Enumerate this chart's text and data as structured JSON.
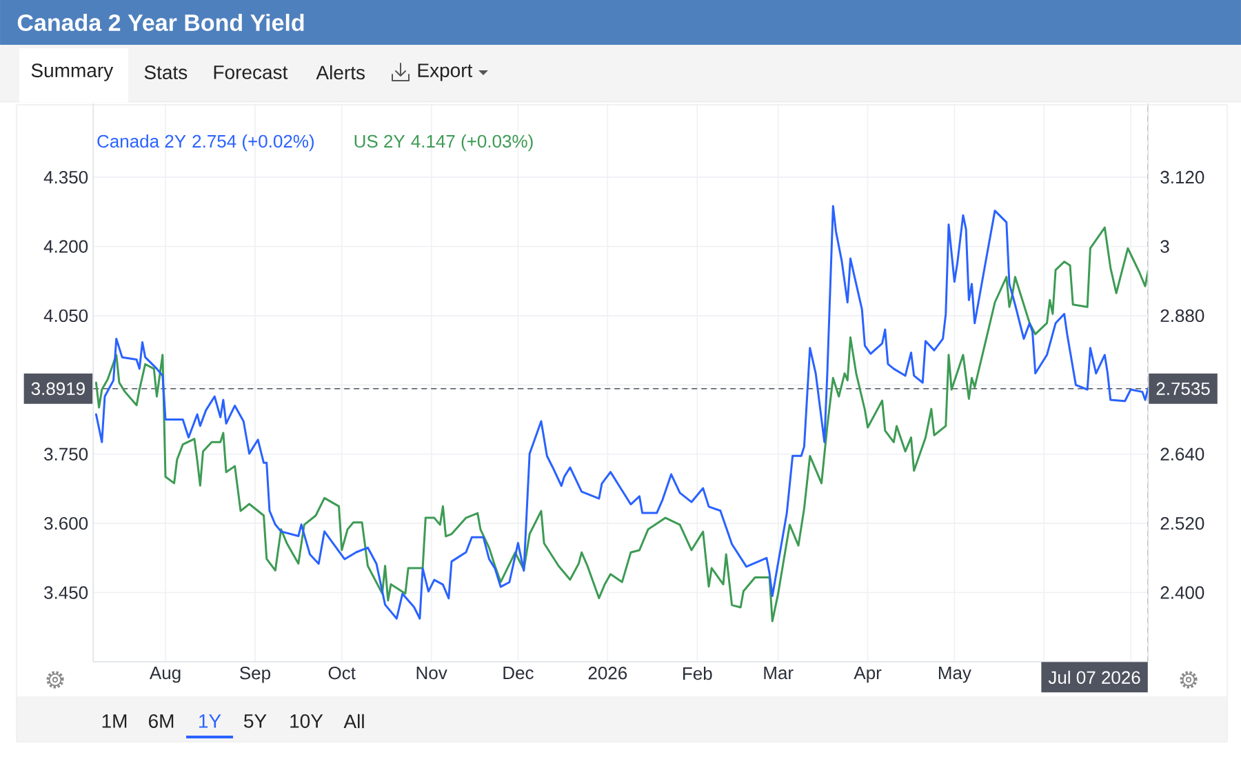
{
  "chart_data": {
    "type": "line",
    "title": "Canada 2 Year Bond Yield",
    "xlim": [
      "2025-07-07",
      "2026-07-07"
    ],
    "xticks": [
      {
        "value": "2025-08-01",
        "label": "Aug"
      },
      {
        "value": "2025-09-01",
        "label": "Sep"
      },
      {
        "value": "2025-10-01",
        "label": "Oct"
      },
      {
        "value": "2025-11-01",
        "label": "Nov"
      },
      {
        "value": "2025-12-01",
        "label": "Dec"
      },
      {
        "value": "2026-01-01",
        "label": "2026"
      },
      {
        "value": "2026-02-01",
        "label": "Feb"
      },
      {
        "value": "2026-03-01",
        "label": "Mar"
      },
      {
        "value": "2026-04-01",
        "label": "Apr"
      },
      {
        "value": "2026-05-01",
        "label": "May"
      },
      {
        "value": "2026-06-01",
        "label": null
      },
      {
        "value": "2026-07-01",
        "label": null
      }
    ],
    "ylim": [
      3.3,
      4.51
    ],
    "yticks": [
      {
        "value": 4.35,
        "label": "4.350"
      },
      {
        "value": 4.2,
        "label": "4.200"
      },
      {
        "value": 4.05,
        "label": "4.050"
      },
      {
        "value": 3.9,
        "label": null
      },
      {
        "value": 3.8919,
        "label": "3.8919"
      },
      {
        "value": 3.75,
        "label": "3.750"
      },
      {
        "value": 3.6,
        "label": "3.600"
      },
      {
        "value": 3.45,
        "label": "3.450"
      }
    ],
    "y2lim": [
      2.28,
      3.248
    ],
    "y2ticks": [
      {
        "value": 3.12,
        "label": "3.120"
      },
      3,
      {
        "value": 2.88,
        "label": "2.880"
      },
      {
        "value": 2.76,
        "label": null
      },
      {
        "value": 2.7535,
        "label": "2.7535"
      },
      {
        "value": 2.64,
        "label": "2.640"
      },
      {
        "value": 2.52,
        "label": "2.520"
      },
      {
        "value": 2.4,
        "label": "2.400"
      }
    ],
    "series": [
      {
        "name": "Canada 2Y",
        "color": "#2962ff",
        "axis": "y2",
        "x": [
          "2025-07-08",
          "2025-07-10",
          "2025-07-11",
          "2025-07-14",
          "2025-07-15",
          "2025-07-17",
          "2025-07-22",
          "2025-07-23",
          "2025-07-24",
          "2025-07-25",
          "2025-07-29",
          "2025-07-31",
          "2025-08-01",
          "2025-08-07",
          "2025-08-09",
          "2025-08-12",
          "2025-08-13",
          "2025-08-15",
          "2025-08-18",
          "2025-08-20",
          "2025-08-21",
          "2025-08-22",
          "2025-08-25",
          "2025-08-28",
          "2025-08-30",
          "2025-09-02",
          "2025-09-04",
          "2025-09-05",
          "2025-09-06",
          "2025-09-08",
          "2025-09-10",
          "2025-09-16",
          "2025-09-17",
          "2025-09-20",
          "2025-09-23",
          "2025-09-25",
          "2025-10-02",
          "2025-10-06",
          "2025-10-10",
          "2025-10-13",
          "2025-10-16",
          "2025-10-20",
          "2025-10-22",
          "2025-10-26",
          "2025-10-28",
          "2025-10-29",
          "2025-10-31",
          "2025-11-02",
          "2025-11-05",
          "2025-11-07",
          "2025-11-08",
          "2025-11-13",
          "2025-11-15",
          "2025-11-19",
          "2025-11-21",
          "2025-11-23",
          "2025-11-25",
          "2025-11-28",
          "2025-12-01",
          "2025-12-03",
          "2025-12-05",
          "2025-12-09",
          "2025-12-11",
          "2025-12-13",
          "2025-12-16",
          "2025-12-17",
          "2025-12-19",
          "2025-12-23",
          "2025-12-29",
          "2025-12-30",
          "2026-01-02",
          "2026-01-05",
          "2026-01-09",
          "2026-01-12",
          "2026-01-13",
          "2026-01-18",
          "2026-01-20",
          "2026-01-23",
          "2026-01-26",
          "2026-01-30",
          "2026-02-03",
          "2026-02-05",
          "2026-02-09",
          "2026-02-13",
          "2026-02-18",
          "2026-02-25",
          "2026-02-26",
          "2026-02-27",
          "2026-03-04",
          "2026-03-06",
          "2026-03-09",
          "2026-03-10",
          "2026-03-12",
          "2026-03-14",
          "2026-03-17",
          "2026-03-18",
          "2026-03-20",
          "2026-03-21",
          "2026-03-23",
          "2026-03-25",
          "2026-03-26",
          "2026-03-28",
          "2026-03-30",
          "2026-03-31",
          "2026-04-02",
          "2026-04-06",
          "2026-04-07",
          "2026-04-08",
          "2026-04-10",
          "2026-04-14",
          "2026-04-16",
          "2026-04-17",
          "2026-04-20",
          "2026-04-21",
          "2026-04-24",
          "2026-04-27",
          "2026-04-28",
          "2026-04-29",
          "2026-05-01",
          "2026-05-02",
          "2026-05-04",
          "2026-05-05",
          "2026-05-06",
          "2026-05-07",
          "2026-05-08",
          "2026-05-12",
          "2026-05-15",
          "2026-05-19",
          "2026-05-20",
          "2026-05-22",
          "2026-05-25",
          "2026-05-27",
          "2026-05-28",
          "2026-05-29",
          "2026-06-02",
          "2026-06-05",
          "2026-06-08",
          "2026-06-09",
          "2026-06-12",
          "2026-06-16",
          "2026-06-17",
          "2026-06-19",
          "2026-06-22",
          "2026-06-23",
          "2026-06-24",
          "2026-06-29",
          "2026-07-01",
          "2026-07-05",
          "2026-07-06",
          "2026-07-07"
        ],
        "values": [
          2.709,
          2.661,
          2.74,
          2.768,
          2.84,
          2.808,
          2.804,
          2.788,
          2.834,
          2.808,
          2.788,
          2.776,
          2.7,
          2.7,
          2.669,
          2.709,
          2.689,
          2.716,
          2.74,
          2.704,
          2.734,
          2.693,
          2.724,
          2.697,
          2.641,
          2.665,
          2.625,
          2.625,
          2.542,
          2.518,
          2.506,
          2.498,
          2.518,
          2.466,
          2.45,
          2.506,
          2.458,
          2.47,
          2.478,
          2.45,
          2.379,
          2.355,
          2.398,
          2.375,
          2.355,
          2.442,
          2.402,
          2.422,
          2.414,
          2.39,
          2.454,
          2.47,
          2.496,
          2.496,
          2.458,
          2.442,
          2.41,
          2.418,
          2.486,
          2.438,
          2.641,
          2.697,
          2.637,
          2.617,
          2.585,
          2.601,
          2.617,
          2.575,
          2.563,
          2.589,
          2.609,
          2.585,
          2.553,
          2.567,
          2.538,
          2.538,
          2.561,
          2.605,
          2.573,
          2.557,
          2.581,
          2.549,
          2.542,
          2.484,
          2.445,
          2.46,
          2.434,
          2.394,
          2.538,
          2.637,
          2.637,
          2.653,
          2.824,
          2.78,
          2.661,
          2.78,
          3.07,
          3.026,
          2.975,
          2.903,
          2.979,
          2.935,
          2.891,
          2.828,
          2.814,
          2.832,
          2.856,
          2.796,
          2.788,
          2.776,
          2.816,
          2.776,
          2.764,
          2.836,
          2.82,
          2.84,
          2.883,
          3.038,
          2.939,
          2.971,
          3.054,
          3.03,
          2.907,
          2.935,
          2.867,
          2.979,
          3.062,
          3.042,
          2.935,
          2.899,
          2.84,
          2.867,
          2.852,
          2.78,
          2.812,
          2.867,
          2.883,
          2.848,
          2.76,
          2.752,
          2.824,
          2.78,
          2.812,
          2.78,
          2.734,
          2.732,
          2.752,
          2.748,
          2.734,
          2.754
        ]
      },
      {
        "name": "US 2Y",
        "color": "#3d9b54",
        "x": [
          "2025-07-08",
          "2025-07-09",
          "2025-07-10",
          "2025-07-12",
          "2025-07-15",
          "2025-07-16",
          "2025-07-18",
          "2025-07-22",
          "2025-07-23",
          "2025-07-25",
          "2025-07-28",
          "2025-07-29",
          "2025-07-31",
          "2025-08-01",
          "2025-08-04",
          "2025-08-05",
          "2025-08-07",
          "2025-08-11",
          "2025-08-12",
          "2025-08-13",
          "2025-08-14",
          "2025-08-17",
          "2025-08-20",
          "2025-08-21",
          "2025-08-22",
          "2025-08-25",
          "2025-08-27",
          "2025-08-30",
          "2025-09-04",
          "2025-09-05",
          "2025-09-08",
          "2025-09-10",
          "2025-09-12",
          "2025-09-16",
          "2025-09-18",
          "2025-09-22",
          "2025-09-25",
          "2025-09-30",
          "2025-10-01",
          "2025-10-03",
          "2025-10-05",
          "2025-10-08",
          "2025-10-10",
          "2025-10-15",
          "2025-10-16",
          "2025-10-17",
          "2025-10-18",
          "2025-10-23",
          "2025-10-24",
          "2025-10-29",
          "2025-10-30",
          "2025-11-02",
          "2025-11-04",
          "2025-11-05",
          "2025-11-06",
          "2025-11-08",
          "2025-11-13",
          "2025-11-17",
          "2025-11-18",
          "2025-11-21",
          "2025-11-23",
          "2025-11-25",
          "2025-11-30",
          "2025-12-03",
          "2025-12-05",
          "2025-12-09",
          "2025-12-10",
          "2025-12-15",
          "2025-12-19",
          "2025-12-22",
          "2025-12-23",
          "2025-12-25",
          "2025-12-29",
          "2025-12-31",
          "2026-01-02",
          "2026-01-06",
          "2026-01-09",
          "2026-01-12",
          "2026-01-15",
          "2026-01-21",
          "2026-01-26",
          "2026-01-30",
          "2026-02-03",
          "2026-02-05",
          "2026-02-06",
          "2026-02-10",
          "2026-02-11",
          "2026-02-13",
          "2026-02-16",
          "2026-02-17",
          "2026-02-21",
          "2026-02-26",
          "2026-02-27",
          "2026-03-01",
          "2026-03-03",
          "2026-03-05",
          "2026-03-08",
          "2026-03-10",
          "2026-03-12",
          "2026-03-16",
          "2026-03-18",
          "2026-03-20",
          "2026-03-22",
          "2026-03-24",
          "2026-03-25",
          "2026-03-26",
          "2026-03-28",
          "2026-03-31",
          "2026-04-01",
          "2026-04-06",
          "2026-04-07",
          "2026-04-10",
          "2026-04-11",
          "2026-04-14",
          "2026-04-16",
          "2026-04-17",
          "2026-04-21",
          "2026-04-23",
          "2026-04-24",
          "2026-04-28",
          "2026-04-29",
          "2026-04-30",
          "2026-05-04",
          "2026-05-06",
          "2026-05-07",
          "2026-05-08",
          "2026-05-12",
          "2026-05-15",
          "2026-05-19",
          "2026-05-20",
          "2026-05-21",
          "2026-05-22",
          "2026-05-27",
          "2026-05-29",
          "2026-06-02",
          "2026-06-03",
          "2026-06-04",
          "2026-06-05",
          "2026-06-08",
          "2026-06-10",
          "2026-06-11",
          "2026-06-16",
          "2026-06-17",
          "2026-06-22",
          "2026-06-24",
          "2026-06-26",
          "2026-06-30",
          "2026-07-04",
          "2026-07-06",
          "2026-07-07"
        ],
        "values": [
          3.905,
          3.851,
          3.89,
          3.912,
          3.965,
          3.905,
          3.885,
          3.856,
          3.89,
          3.945,
          3.935,
          3.875,
          3.965,
          3.701,
          3.687,
          3.738,
          3.771,
          3.783,
          3.736,
          3.682,
          3.756,
          3.776,
          3.776,
          3.796,
          3.711,
          3.724,
          3.627,
          3.642,
          3.617,
          3.523,
          3.498,
          3.587,
          3.557,
          3.513,
          3.597,
          3.617,
          3.655,
          3.637,
          3.542,
          3.587,
          3.602,
          3.602,
          3.508,
          3.448,
          3.508,
          3.433,
          3.468,
          3.448,
          3.503,
          3.503,
          3.612,
          3.612,
          3.597,
          3.637,
          3.572,
          3.577,
          3.612,
          3.622,
          3.587,
          3.547,
          3.508,
          3.473,
          3.537,
          3.5,
          3.577,
          3.627,
          3.557,
          3.508,
          3.478,
          3.513,
          3.537,
          3.508,
          3.438,
          3.468,
          3.49,
          3.473,
          3.537,
          3.542,
          3.587,
          3.612,
          3.597,
          3.542,
          3.582,
          3.463,
          3.503,
          3.468,
          3.533,
          3.423,
          3.418,
          3.453,
          3.483,
          3.483,
          3.388,
          3.448,
          3.523,
          3.597,
          3.552,
          3.632,
          3.746,
          3.687,
          3.811,
          3.915,
          3.875,
          3.925,
          3.91,
          4.003,
          3.925,
          3.846,
          3.808,
          3.866,
          3.801,
          3.776,
          3.811,
          3.756,
          3.786,
          3.714,
          3.786,
          3.848,
          3.791,
          3.811,
          3.965,
          3.89,
          3.965,
          3.87,
          3.915,
          3.895,
          4.0,
          4.079,
          4.134,
          4.069,
          4.094,
          4.134,
          4.034,
          4.01,
          4.034,
          4.084,
          4.054,
          4.149,
          4.167,
          4.159,
          4.074,
          4.069,
          4.196,
          4.241,
          4.154,
          4.099,
          4.196,
          4.144,
          4.114,
          4.147
        ]
      }
    ],
    "ref_lines": [
      {
        "axis": "y",
        "value": 3.8919,
        "color": "#505460",
        "line_style": "dashed"
      },
      {
        "axis": "x",
        "value": "2026-07-07",
        "color": "#505460",
        "line_style": "dashed"
      }
    ],
    "annotations": [
      "2.754 (+0.02%)",
      "4.147 (+0.03%)",
      "Summary",
      "Stats",
      "Forecast",
      "Alerts",
      "Export",
      "1M",
      "6M",
      "1Y",
      "5Y",
      "10Y",
      "All",
      "Jul 07 2026"
    ],
    "grid": true,
    "legend": "top left"
  }
}
